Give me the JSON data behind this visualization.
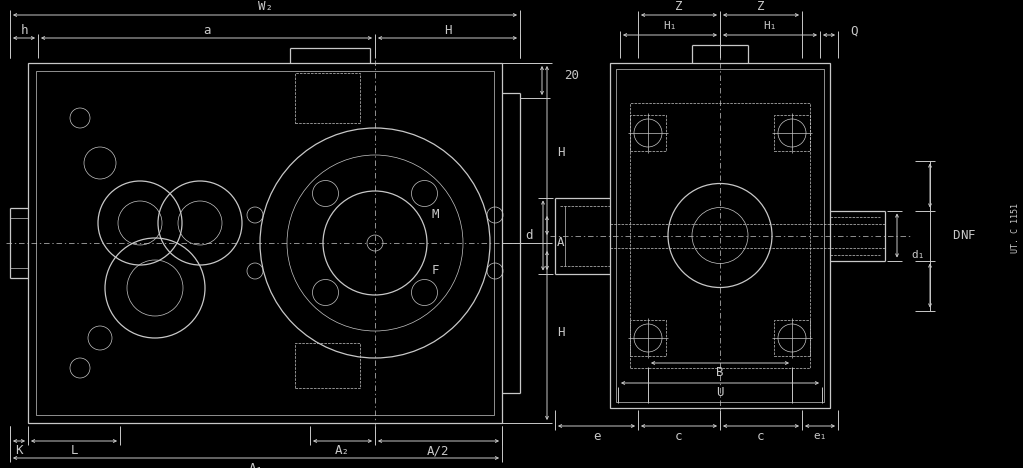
{
  "bg_color": "#000000",
  "line_color": "#c8c8c8",
  "text_color": "#c8c8c8",
  "figsize": [
    10.23,
    4.68
  ],
  "dpi": 100,
  "xlim": [
    0,
    1023
  ],
  "ylim": [
    0,
    468
  ]
}
